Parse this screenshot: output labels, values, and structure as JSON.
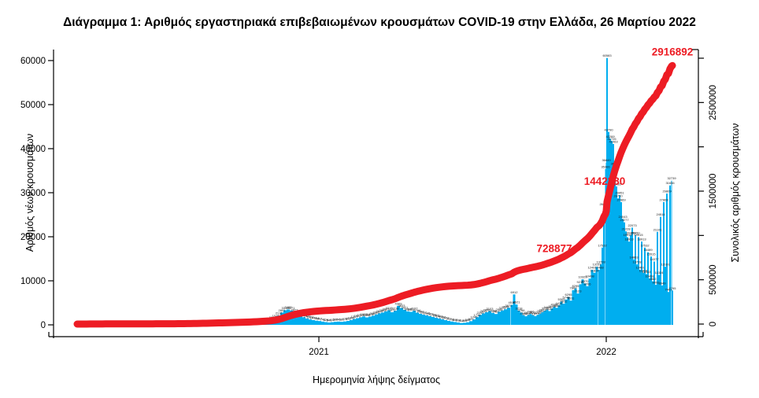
{
  "title": "Διάγραμμα 1: Αριθμός εργαστηριακά επιβεβαιωμένων κρουσμάτων COVID-19 στην Ελλάδα, 26 Μαρτίου 2022",
  "axes": {
    "left": {
      "label": "Αριθμός νέων κρουσμάτων",
      "tick_values": [
        0,
        10000,
        20000,
        30000,
        40000,
        50000,
        60000
      ]
    },
    "right": {
      "label": "Συνολικός αριθμός κρουσμάτων",
      "tick_values": [
        0,
        500000,
        1000000,
        1500000,
        2000000,
        2500000,
        3000000
      ],
      "labeled_values": [
        0,
        500000,
        1500000,
        2500000
      ]
    },
    "x": {
      "label": "Ημερομηνία λήψης δείγματος",
      "ticks": [
        {
          "label": "2021",
          "day": 310
        },
        {
          "label": "2022",
          "day": 675
        }
      ]
    }
  },
  "annotations": [
    {
      "text": "728877",
      "value": 728877
    },
    {
      "text": "1442380",
      "value": 1442380
    },
    {
      "text": "2916892",
      "value": 2916892
    }
  ],
  "colors": {
    "bar": "#00AEEF",
    "line": "#ED1C24",
    "annotation": "#ED1C24",
    "axis": "#000000",
    "bar_label": "#1A1A1A",
    "title": "#111111"
  },
  "chart_data": {
    "type": "bar",
    "bar_series_name": "daily new confirmed cases (left axis)",
    "line_series_name": "cumulative confirmed cases (right axis, thick red line)",
    "left_ylim": [
      0,
      60000
    ],
    "right_ylim": [
      0,
      3000000
    ],
    "cumulative_total": 2916892,
    "cumulative_milestones": [
      728877,
      1442380,
      2916892
    ],
    "x_tick_labels": [
      "2021",
      "2022"
    ],
    "bars": [
      [
        3,
        7
      ],
      [
        7,
        16
      ],
      [
        11,
        31
      ],
      [
        15,
        48
      ],
      [
        19,
        61
      ],
      [
        23,
        71
      ],
      [
        27,
        93
      ],
      [
        31,
        82
      ],
      [
        35,
        65
      ],
      [
        39,
        52
      ],
      [
        43,
        38
      ],
      [
        47,
        28
      ],
      [
        51,
        21
      ],
      [
        55,
        16
      ],
      [
        59,
        12
      ],
      [
        63,
        10
      ],
      [
        67,
        11
      ],
      [
        71,
        13
      ],
      [
        75,
        16
      ],
      [
        79,
        14
      ],
      [
        83,
        12
      ],
      [
        87,
        14
      ],
      [
        91,
        17
      ],
      [
        95,
        19
      ],
      [
        99,
        22
      ],
      [
        103,
        27
      ],
      [
        107,
        32
      ],
      [
        111,
        38
      ],
      [
        115,
        43
      ],
      [
        119,
        49
      ],
      [
        123,
        54
      ],
      [
        127,
        57
      ],
      [
        131,
        66
      ],
      [
        135,
        79
      ],
      [
        139,
        97
      ],
      [
        143,
        121
      ],
      [
        147,
        152
      ],
      [
        151,
        176
      ],
      [
        155,
        193
      ],
      [
        159,
        211
      ],
      [
        163,
        229
      ],
      [
        167,
        248
      ],
      [
        171,
        266
      ],
      [
        175,
        284
      ],
      [
        179,
        262
      ],
      [
        183,
        241
      ],
      [
        187,
        253
      ],
      [
        191,
        271
      ],
      [
        195,
        289
      ],
      [
        199,
        308
      ],
      [
        203,
        329
      ],
      [
        207,
        342
      ],
      [
        211,
        316
      ],
      [
        215,
        301
      ],
      [
        219,
        327
      ],
      [
        223,
        358
      ],
      [
        227,
        412
      ],
      [
        231,
        467
      ],
      [
        235,
        531
      ],
      [
        239,
        612
      ],
      [
        243,
        718
      ],
      [
        247,
        866
      ],
      [
        251,
        1147
      ],
      [
        255,
        1547
      ],
      [
        259,
        2116
      ],
      [
        263,
        2801
      ],
      [
        267,
        3316
      ],
      [
        271,
        3489
      ],
      [
        275,
        3271
      ],
      [
        279,
        2822
      ],
      [
        283,
        2383
      ],
      [
        287,
        2041
      ],
      [
        291,
        1726
      ],
      [
        295,
        1449
      ],
      [
        299,
        1228
      ],
      [
        303,
        1071
      ],
      [
        307,
        954
      ],
      [
        311,
        867
      ],
      [
        315,
        741
      ],
      [
        319,
        628
      ],
      [
        323,
        541
      ],
      [
        327,
        612
      ],
      [
        331,
        688
      ],
      [
        335,
        741
      ],
      [
        339,
        689
      ],
      [
        343,
        772
      ],
      [
        347,
        893
      ],
      [
        351,
        1088
      ],
      [
        355,
        1317
      ],
      [
        359,
        1522
      ],
      [
        363,
        1728
      ],
      [
        367,
        1905
      ],
      [
        371,
        1696
      ],
      [
        375,
        1878
      ],
      [
        379,
        2087
      ],
      [
        383,
        2366
      ],
      [
        387,
        2612
      ],
      [
        391,
        2803
      ],
      [
        395,
        3067
      ],
      [
        399,
        3316
      ],
      [
        403,
        2872
      ],
      [
        407,
        3218
      ],
      [
        411,
        4309
      ],
      [
        415,
        3833
      ],
      [
        419,
        3421
      ],
      [
        423,
        3067
      ],
      [
        427,
        2951
      ],
      [
        431,
        3197
      ],
      [
        435,
        2766
      ],
      [
        439,
        2502
      ],
      [
        443,
        2311
      ],
      [
        447,
        2146
      ],
      [
        451,
        1972
      ],
      [
        455,
        1788
      ],
      [
        459,
        1605
      ],
      [
        463,
        1442
      ],
      [
        467,
        1256
      ],
      [
        471,
        1072
      ],
      [
        475,
        901
      ],
      [
        479,
        756
      ],
      [
        483,
        642
      ],
      [
        487,
        538
      ],
      [
        491,
        412
      ],
      [
        495,
        466
      ],
      [
        499,
        588
      ],
      [
        503,
        841
      ],
      [
        507,
        1245
      ],
      [
        511,
        1738
      ],
      [
        515,
        2259
      ],
      [
        519,
        2611
      ],
      [
        523,
        2856
      ],
      [
        527,
        3103
      ],
      [
        531,
        2698
      ],
      [
        535,
        2467
      ],
      [
        539,
        2988
      ],
      [
        543,
        3272
      ],
      [
        547,
        3538
      ],
      [
        551,
        3872
      ],
      [
        555,
        4518
      ],
      [
        558,
        6912
      ],
      [
        561,
        4621
      ],
      [
        564,
        3218
      ],
      [
        567,
        2766
      ],
      [
        570,
        2187
      ],
      [
        573,
        1943
      ],
      [
        576,
        2218
      ],
      [
        579,
        2466
      ],
      [
        582,
        2191
      ],
      [
        585,
        1977
      ],
      [
        588,
        2266
      ],
      [
        591,
        2553
      ],
      [
        594,
        2873
      ],
      [
        597,
        3211
      ],
      [
        600,
        3466
      ],
      [
        603,
        3122
      ],
      [
        606,
        3693
      ],
      [
        609,
        4104
      ],
      [
        612,
        3866
      ],
      [
        615,
        4414
      ],
      [
        618,
        5309
      ],
      [
        621,
        4812
      ],
      [
        624,
        5748
      ],
      [
        627,
        6295
      ],
      [
        630,
        5511
      ],
      [
        633,
        7862
      ],
      [
        636,
        8295
      ],
      [
        639,
        7123
      ],
      [
        642,
        9215
      ],
      [
        645,
        10329
      ],
      [
        648,
        9370
      ],
      [
        651,
        8766
      ],
      [
        654,
        10498
      ],
      [
        657,
        12491
      ],
      [
        660,
        11824
      ],
      [
        663,
        13191
      ],
      [
        666,
        12488
      ],
      [
        668,
        13728
      ],
      [
        670,
        17532
      ],
      [
        672,
        26849
      ],
      [
        674,
        35366
      ],
      [
        675,
        36849
      ],
      [
        676,
        60583
      ],
      [
        678,
        43790
      ],
      [
        680,
        42269
      ],
      [
        682,
        41726
      ],
      [
        684,
        41063
      ],
      [
        686,
        36112
      ],
      [
        688,
        31416
      ],
      [
        690,
        28710
      ],
      [
        692,
        29451
      ],
      [
        694,
        27869
      ],
      [
        696,
        24043
      ],
      [
        698,
        23277
      ],
      [
        700,
        21228
      ],
      [
        702,
        19915
      ],
      [
        704,
        18913
      ],
      [
        706,
        20350
      ],
      [
        708,
        22073
      ],
      [
        710,
        14863
      ],
      [
        712,
        20350
      ],
      [
        714,
        13728
      ],
      [
        716,
        19915
      ],
      [
        718,
        12491
      ],
      [
        720,
        18913
      ],
      [
        722,
        11824
      ],
      [
        724,
        17532
      ],
      [
        726,
        11543
      ],
      [
        728,
        16489
      ],
      [
        730,
        10498
      ],
      [
        732,
        15515
      ],
      [
        734,
        9882
      ],
      [
        736,
        14377
      ],
      [
        738,
        9092
      ],
      [
        740,
        21101
      ],
      [
        742,
        11324
      ],
      [
        744,
        24514
      ],
      [
        746,
        8949
      ],
      [
        748,
        27869
      ],
      [
        750,
        13191
      ],
      [
        752,
        29809
      ],
      [
        754,
        7461
      ],
      [
        756,
        31656
      ],
      [
        758,
        32739
      ],
      [
        759,
        7795
      ]
    ]
  }
}
